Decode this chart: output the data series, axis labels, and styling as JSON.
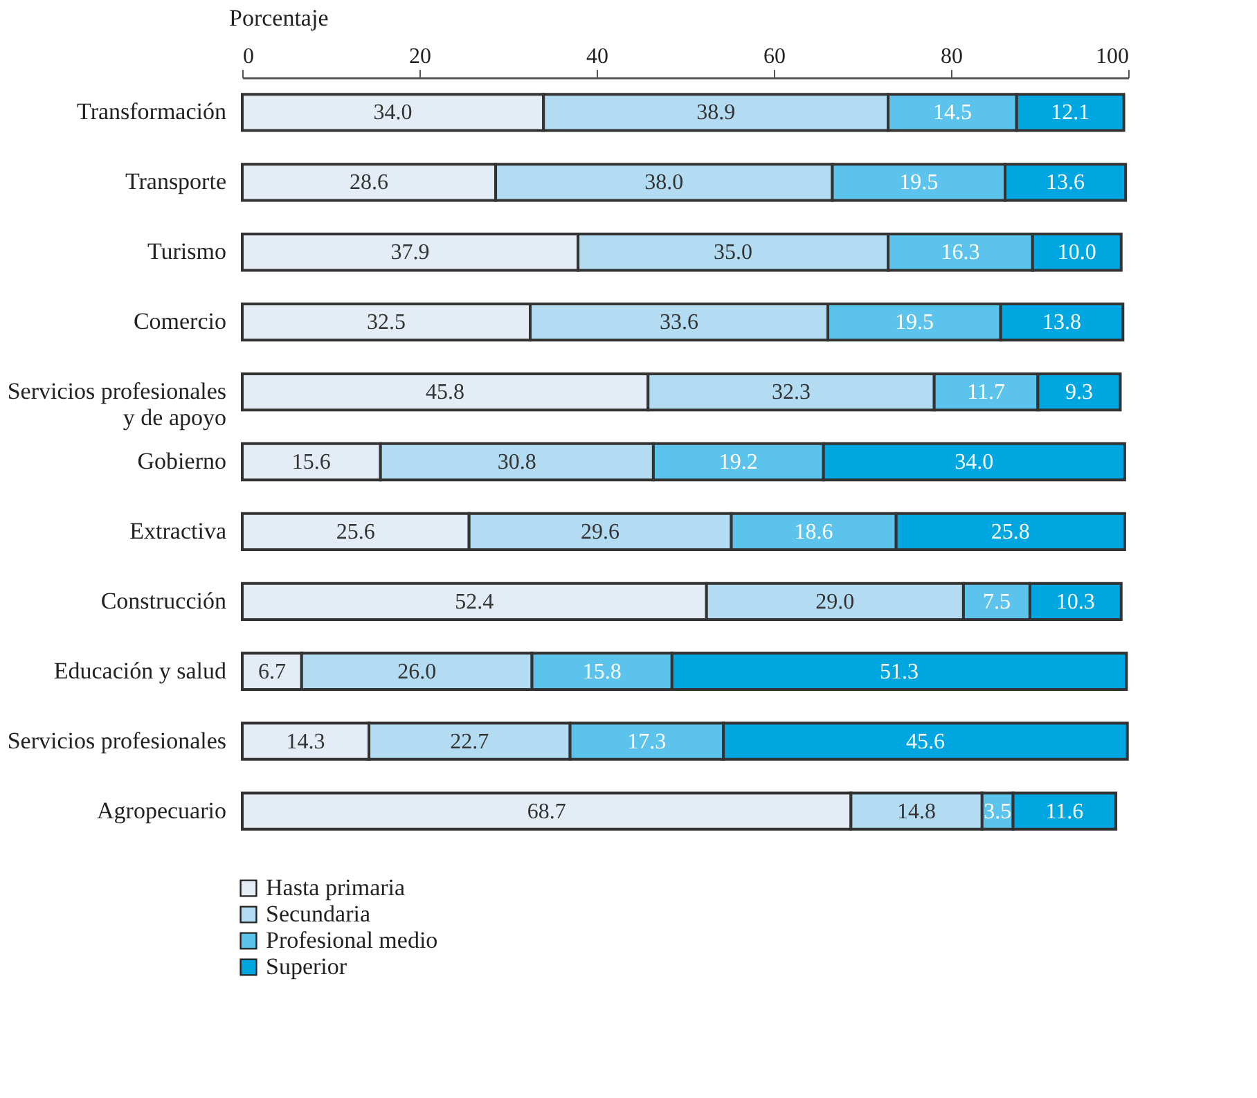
{
  "chart_data": {
    "type": "bar",
    "orientation": "horizontal",
    "stacked": true,
    "xlabel": "Porcentaje",
    "categories": [
      "Transformación",
      "Transporte",
      "Turismo",
      "Comercio",
      "Servicios profesionales\ny de apoyo",
      "Gobierno",
      "Extractiva",
      "Construcción",
      "Educación y salud",
      "Servicios profesionales",
      "Agropecuario"
    ],
    "series": [
      {
        "name": "Hasta primaria",
        "color": "#e4edf5",
        "values": [
          34.0,
          28.6,
          37.9,
          32.5,
          45.8,
          15.6,
          25.6,
          52.4,
          6.7,
          14.3,
          68.7
        ],
        "value_labels": [
          "34.0",
          "28.6",
          "37.9",
          "32.5",
          "45.8",
          "15.6",
          "25.6",
          "52.4",
          "6.7",
          "14.3",
          "68.7"
        ]
      },
      {
        "name": "Secundaria",
        "color": "#b3dcf2",
        "values": [
          38.9,
          38.0,
          35.0,
          33.6,
          32.3,
          30.8,
          29.6,
          29.0,
          26.0,
          22.7,
          14.8
        ],
        "value_labels": [
          "38.9",
          "38.0",
          "35.0",
          "33.6",
          "32.3",
          "30.8",
          "29.6",
          "29.0",
          "26.0",
          "22.7",
          "14.8"
        ]
      },
      {
        "name": "Profesional medio",
        "color": "#5cc4ec",
        "values": [
          14.5,
          19.5,
          16.3,
          19.5,
          11.7,
          19.2,
          18.6,
          7.5,
          15.8,
          17.3,
          3.5
        ],
        "value_labels": [
          "14.5",
          "19.5",
          "16.3",
          "19.5",
          "11.7",
          "19.2",
          "18.6",
          "7.5",
          "15.8",
          "17.3",
          "3.5"
        ]
      },
      {
        "name": "Superior",
        "color": "#00a6e0",
        "values": [
          12.1,
          13.6,
          10.0,
          13.8,
          9.3,
          34.0,
          25.8,
          10.3,
          51.3,
          45.6,
          11.6
        ],
        "value_labels": [
          "12.1",
          "13.6",
          "10.0",
          "13.8",
          "9.3",
          "34.0",
          "25.8",
          "10.3",
          "51.3",
          "45.6",
          "11.6"
        ]
      }
    ],
    "xlim": [
      0,
      100
    ],
    "xticks": [
      0,
      20,
      40,
      60,
      80,
      100
    ],
    "legend": "bottom left",
    "grid": false
  }
}
